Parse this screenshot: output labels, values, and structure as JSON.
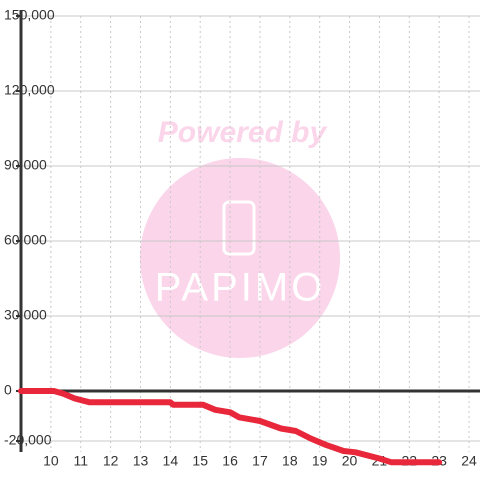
{
  "chart_data": {
    "type": "line",
    "x": [
      9.0,
      10.1,
      10.4,
      10.8,
      11.3,
      14.0,
      14.1,
      15.1,
      15.5,
      16.0,
      16.3,
      17.0,
      17.7,
      18.2,
      18.7,
      19.2,
      19.8,
      20.2,
      21.0,
      21.4,
      23.0
    ],
    "values": [
      0,
      0,
      -1000,
      -3000,
      -4500,
      -4500,
      -5500,
      -5500,
      -7500,
      -8500,
      -10500,
      -12000,
      -15000,
      -16000,
      -19000,
      -21500,
      -24000,
      -24500,
      -27000,
      -28500,
      -28500
    ],
    "color": "#e8273b",
    "xlim": [
      9,
      24.3
    ],
    "xticks": [
      10,
      11,
      12,
      13,
      14,
      15,
      16,
      17,
      18,
      19,
      20,
      21,
      22,
      23,
      24
    ],
    "ylim": [
      -35000,
      150000
    ],
    "yticks": [
      {
        "value": 150000,
        "label": "150,000"
      },
      {
        "value": 120000,
        "label": "120,000"
      },
      {
        "value": 90000,
        "label": "90,000"
      },
      {
        "value": 60000,
        "label": "60,000"
      },
      {
        "value": 30000,
        "label": "30,000"
      },
      0,
      {
        "value": -20000,
        "label": "-20,000"
      }
    ],
    "grid": true,
    "watermark": {
      "line1": "Powered by",
      "line2": "PAPIMO"
    }
  }
}
